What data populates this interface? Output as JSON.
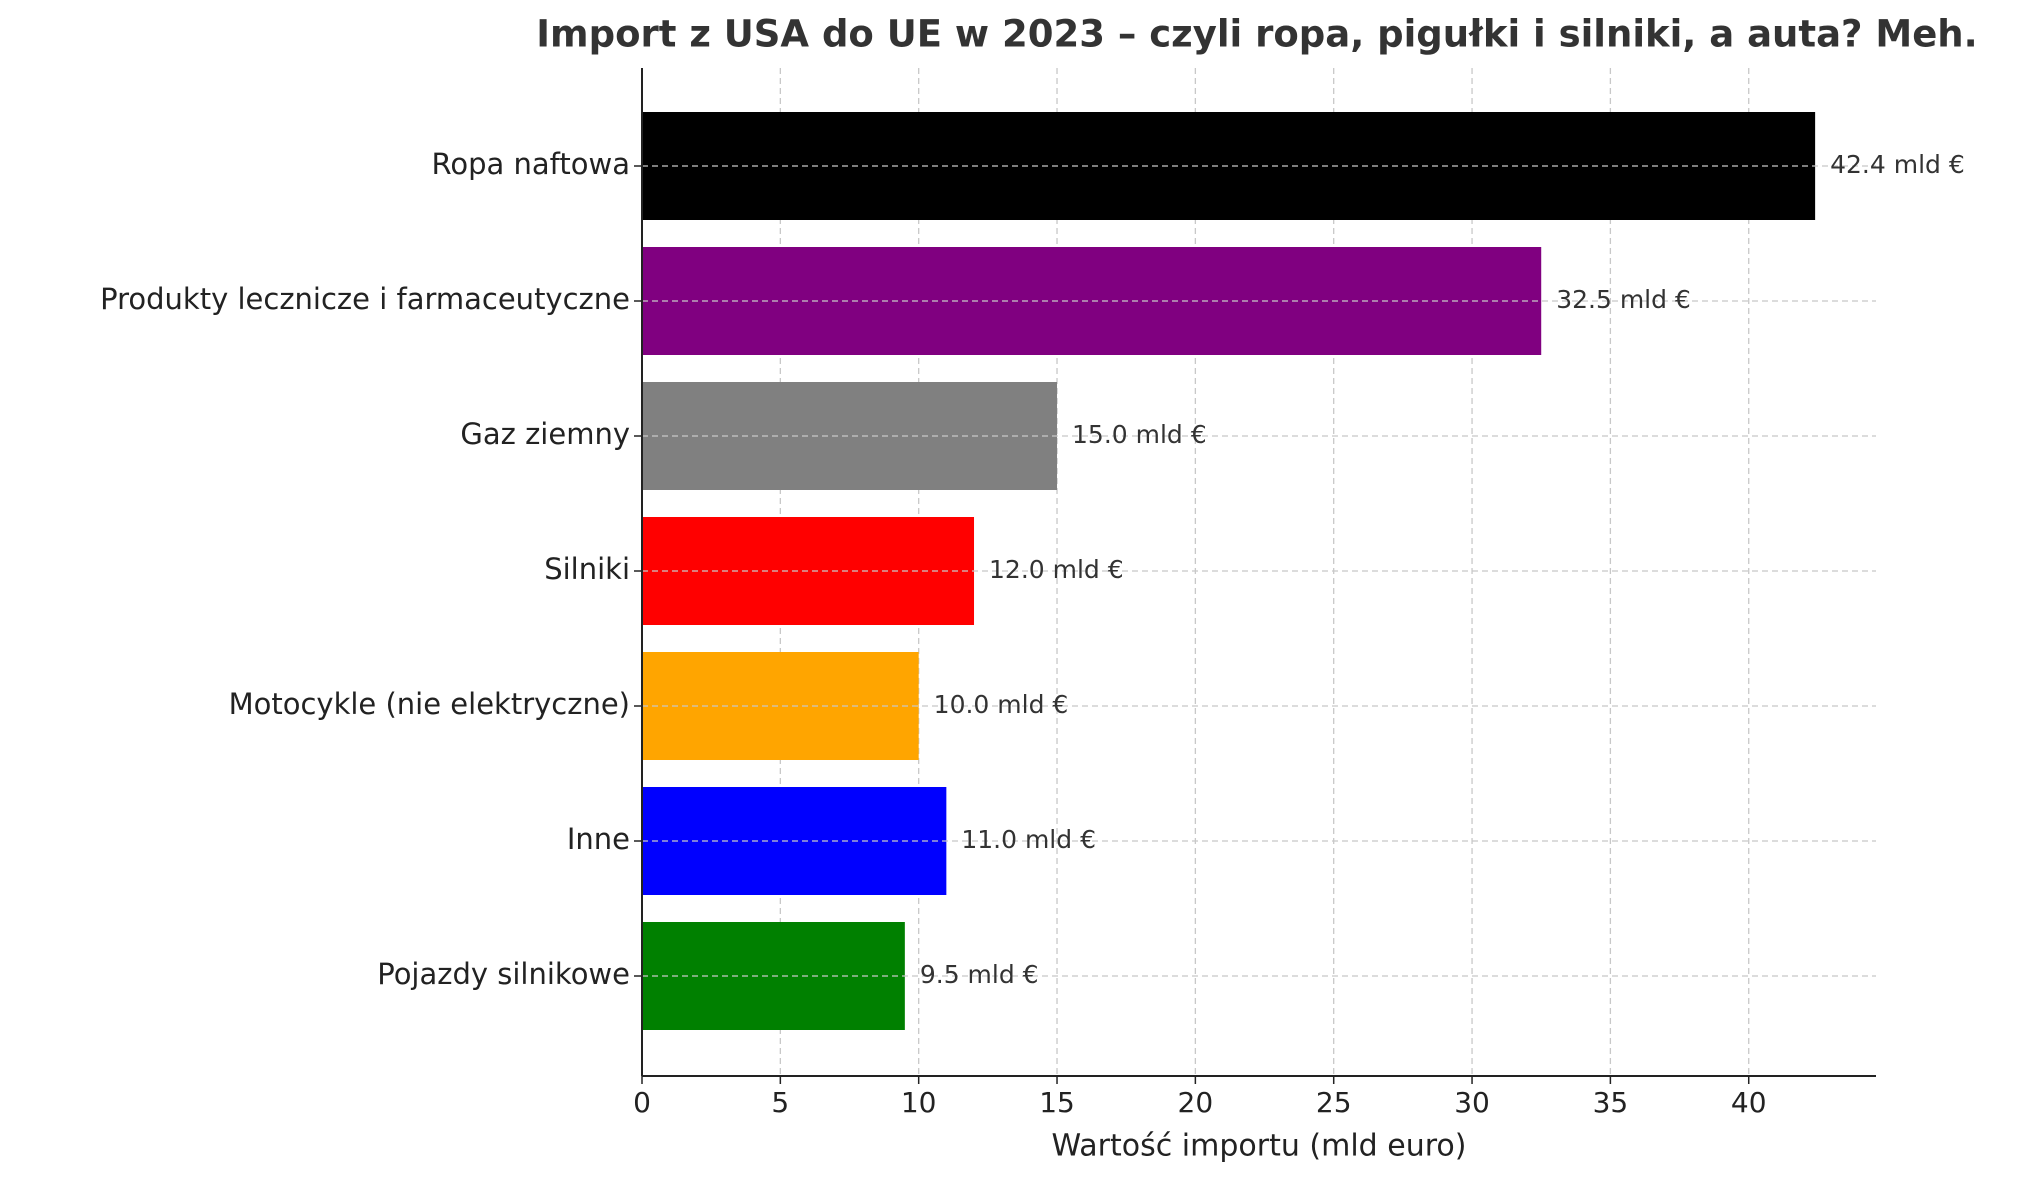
{
  "chart_data": {
    "type": "barh",
    "title": "Import z USA do UE w 2023 – czyli ropa, pigułki i silniki, a auta? Meh.",
    "x_label": "Wartość importu (mld euro)",
    "categories": [
      "Ropa naftowa",
      "Produkty lecznicze i farmaceutyczne",
      "Gaz ziemny",
      "Silniki",
      "Motocykle (nie elektryczne)",
      "Inne",
      "Pojazdy silnikowe"
    ],
    "values": [
      42.4,
      32.5,
      15.0,
      12.0,
      10.0,
      11.0,
      9.5
    ],
    "value_labels": [
      "42.4 mld €",
      "32.5 mld €",
      "15.0 mld €",
      "12.0 mld €",
      "10.0 mld €",
      "11.0 mld €",
      "9.5 mld €"
    ],
    "colors": [
      "#000000",
      "#800080",
      "#808080",
      "#ff0000",
      "#ffa500",
      "#0000ff",
      "#008000"
    ],
    "xlim": [
      0,
      44.6
    ],
    "xticks": [
      0,
      5,
      10,
      15,
      20,
      25,
      30,
      35,
      40
    ],
    "grid": true
  }
}
